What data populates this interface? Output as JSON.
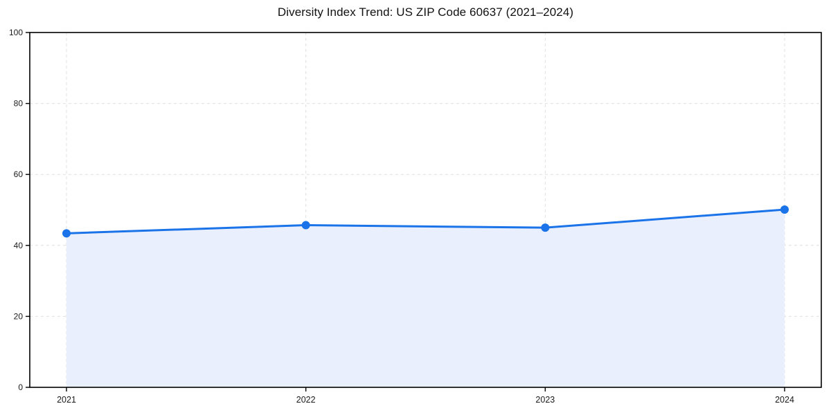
{
  "chart_data": {
    "type": "area",
    "title": "Diversity Index Trend: US ZIP Code 60637 (2021–2024)",
    "categories": [
      "2021",
      "2022",
      "2023",
      "2024"
    ],
    "series": [
      {
        "name": "Diversity Index",
        "values": [
          43.4,
          45.7,
          45.0,
          50.1
        ]
      }
    ],
    "xlabel": "",
    "ylabel": "",
    "ylim": [
      0,
      100
    ],
    "yticks": [
      0,
      20,
      40,
      60,
      80,
      100
    ],
    "grid": true,
    "grid_style": "dashed",
    "legend": false,
    "line_color": "#1a73e8",
    "fill_color": "#e9effc",
    "grid_color": "#dfdfdf",
    "axis_color": "#000000",
    "tick_label_color": "#1a1a1a"
  }
}
